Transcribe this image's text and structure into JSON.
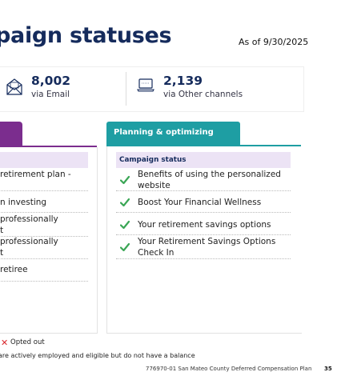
{
  "page": {
    "title": "paign statuses",
    "as_of": "As of 9/30/2025"
  },
  "stats": [
    {
      "icon": "envelope-icon",
      "value": "8,002",
      "label": "via Email"
    },
    {
      "icon": "laptop-icon",
      "value": "2,139",
      "label": "via Other channels"
    }
  ],
  "left_panel": {
    "tab_color": "#7b2d8e",
    "items": [
      "retirement plan -",
      "n investing",
      "professionally",
      "t",
      "professionally",
      "t",
      "retiree"
    ]
  },
  "right_panel": {
    "tab_label": "Planning & optimizing",
    "tab_color": "#1e9ea3",
    "header": "Campaign status",
    "items": [
      "Benefits of using the personalized website",
      "Boost Your Financial Wellness",
      "Your retirement savings options",
      "Your Retirement Savings Options Check In"
    ]
  },
  "legend": {
    "opted_out": "Opted out",
    "opted_out_color": "#d9262c",
    "check_color": "#3aa655"
  },
  "footnote": "are actively employed and eligible but do not have a balance",
  "footer": {
    "doc": "776970-01 San Mateo County Deferred Compensation Plan",
    "page_number": "35"
  }
}
